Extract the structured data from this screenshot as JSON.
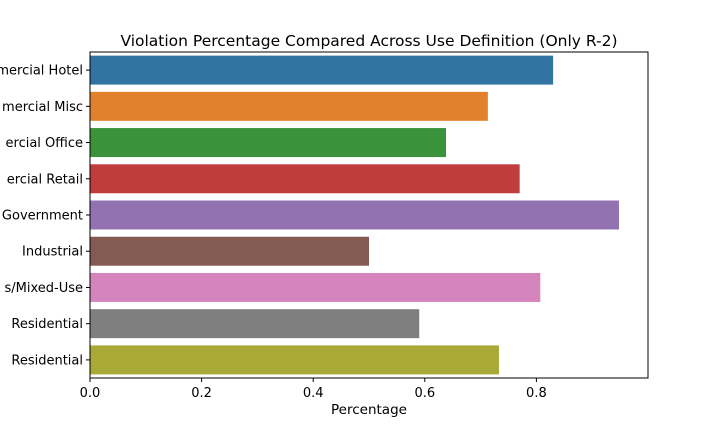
{
  "chart_data": {
    "type": "bar",
    "orientation": "horizontal",
    "title": "Violation Percentage Compared Across Use Definition (Only R-2)",
    "xlabel": "Percentage",
    "ylabel": "",
    "xlim": [
      0,
      1.0
    ],
    "xticks": [
      0.0,
      0.2,
      0.4,
      0.6,
      0.8
    ],
    "xtick_labels": [
      "0.0",
      "0.2",
      "0.4",
      "0.6",
      "0.8"
    ],
    "grid": false,
    "categories": [
      "mercial Hotel",
      "mercial Misc",
      "ercial Office",
      "ercial Retail",
      "Government",
      "Industrial",
      "s/Mixed-Use",
      "Residential",
      "Residential"
    ],
    "values": [
      0.83,
      0.713,
      0.638,
      0.77,
      0.948,
      0.5,
      0.807,
      0.59,
      0.733
    ],
    "colors": [
      "#3274a1",
      "#e1812c",
      "#3a923a",
      "#c03d3e",
      "#9372b2",
      "#845b53",
      "#d684bd",
      "#7f7f7f",
      "#a9aa35"
    ]
  }
}
